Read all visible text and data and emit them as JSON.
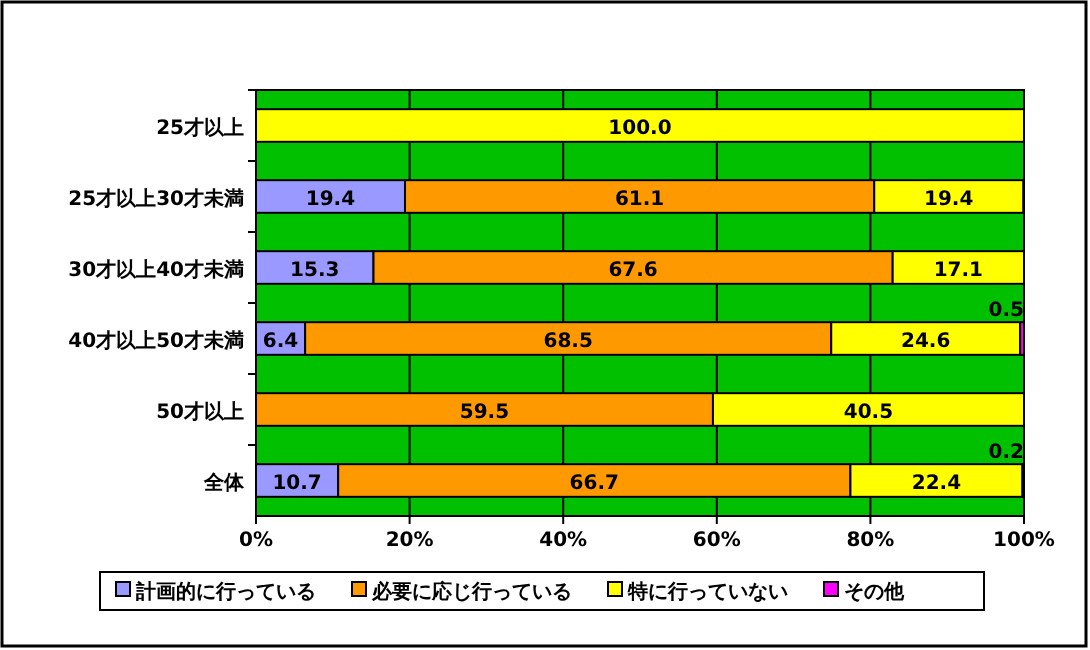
{
  "chart_data": {
    "type": "bar",
    "orientation": "horizontal",
    "stacked": true,
    "categories": [
      "25才以上",
      "25才以上30才未満",
      "30才以上40才未満",
      "40才以上50才未満",
      "50才以上",
      "全体"
    ],
    "series": [
      {
        "name": "計画的に行っている",
        "color": "#9999ff",
        "values": [
          0,
          19.4,
          15.3,
          6.4,
          0,
          10.7
        ],
        "value_labels": [
          null,
          "19.4",
          "15.3",
          "6.4",
          null,
          "10.7"
        ]
      },
      {
        "name": "必要に応じ行っている",
        "color": "#ff9900",
        "values": [
          0,
          61.1,
          67.6,
          68.5,
          59.5,
          66.7
        ],
        "value_labels": [
          null,
          "61.1",
          "67.6",
          "68.5",
          "59.5",
          "66.7"
        ]
      },
      {
        "name": "特に行っていない",
        "color": "#ffff00",
        "values": [
          100.0,
          19.4,
          17.1,
          24.6,
          40.5,
          22.4
        ],
        "value_labels": [
          "100.0",
          "19.4",
          "17.1",
          "24.6",
          "40.5",
          "22.4"
        ]
      },
      {
        "name": "その他",
        "color": "#ff00ff",
        "values": [
          0,
          0,
          0,
          0.5,
          0,
          0.2
        ],
        "value_labels": [
          null,
          null,
          null,
          "0.5",
          null,
          "0.2"
        ]
      }
    ],
    "xlim": [
      0,
      100
    ],
    "xticks": [
      {
        "value": 0,
        "label": "0%"
      },
      {
        "value": 20,
        "label": "20%"
      },
      {
        "value": 40,
        "label": "40%"
      },
      {
        "value": 60,
        "label": "60%"
      },
      {
        "value": 80,
        "label": "80%"
      },
      {
        "value": 100,
        "label": "100%"
      }
    ],
    "grid": "x",
    "legend": "bottom"
  }
}
